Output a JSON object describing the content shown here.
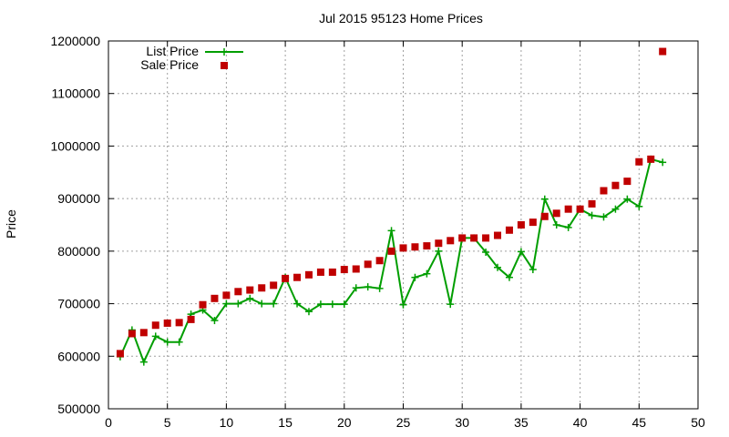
{
  "chart_data": {
    "type": "line",
    "title": "Jul 2015 95123 Home Prices",
    "xlabel": "",
    "ylabel": "Price",
    "xlim": [
      0,
      50
    ],
    "ylim": [
      500000,
      1200000
    ],
    "xticks": [
      0,
      5,
      10,
      15,
      20,
      25,
      30,
      35,
      40,
      45,
      50
    ],
    "yticks": [
      500000,
      600000,
      700000,
      800000,
      900000,
      1000000,
      1100000,
      1200000
    ],
    "grid": true,
    "legend": "top-left",
    "series": [
      {
        "name": "List Price",
        "style": "line-with-plus-markers",
        "color": "#009e00",
        "x": [
          1,
          2,
          3,
          4,
          5,
          6,
          7,
          8,
          9,
          10,
          11,
          12,
          13,
          14,
          15,
          16,
          17,
          18,
          19,
          20,
          21,
          22,
          23,
          24,
          25,
          26,
          27,
          28,
          29,
          30,
          31,
          32,
          33,
          34,
          35,
          36,
          37,
          38,
          39,
          40,
          41,
          42,
          43,
          44,
          45,
          46,
          47
        ],
        "y": [
          599000,
          650000,
          589000,
          638000,
          627000,
          627000,
          680000,
          688000,
          668000,
          700000,
          700000,
          710000,
          700000,
          700000,
          750000,
          700000,
          685000,
          699000,
          699000,
          699000,
          730000,
          732000,
          729000,
          839000,
          698000,
          750000,
          757000,
          800000,
          699000,
          825000,
          825000,
          798000,
          769000,
          750000,
          799000,
          765000,
          899000,
          850000,
          845000,
          880000,
          868000,
          865000,
          880000,
          899000,
          885000,
          975000,
          969000
        ]
      },
      {
        "name": "Sale Price",
        "style": "square-markers",
        "color": "#c00000",
        "x": [
          1,
          2,
          3,
          4,
          5,
          6,
          7,
          8,
          9,
          10,
          11,
          12,
          13,
          14,
          15,
          16,
          17,
          18,
          19,
          20,
          21,
          22,
          23,
          24,
          25,
          26,
          27,
          28,
          29,
          30,
          31,
          32,
          33,
          34,
          35,
          36,
          37,
          38,
          39,
          40,
          41,
          42,
          43,
          44,
          45,
          46,
          47
        ],
        "y": [
          605000,
          643000,
          645000,
          659000,
          663000,
          664000,
          670000,
          698000,
          710000,
          716000,
          723000,
          726000,
          730000,
          735000,
          748000,
          750000,
          755000,
          760000,
          760000,
          765000,
          766000,
          775000,
          782000,
          800000,
          806000,
          808000,
          810000,
          815000,
          820000,
          825000,
          825000,
          825000,
          830000,
          840000,
          850000,
          855000,
          866000,
          872000,
          880000,
          880000,
          890000,
          915000,
          925000,
          933000,
          970000,
          975000,
          1180000
        ]
      }
    ]
  }
}
